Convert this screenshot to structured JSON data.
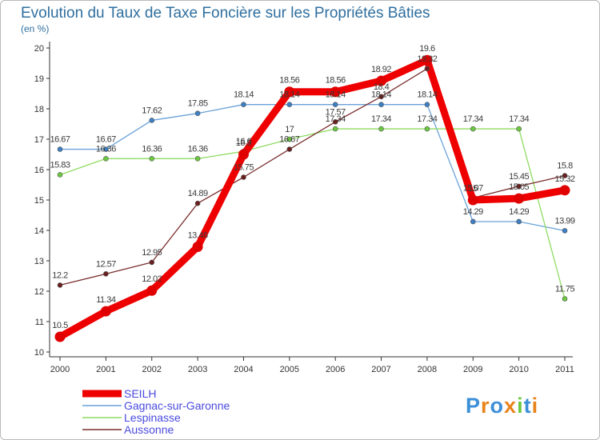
{
  "chart_data": {
    "type": "line",
    "title": "Evolution du Taux de Taxe Foncière sur les Propriétés Bâties",
    "subtitle": "(en %)",
    "xlabel": "",
    "ylabel": "",
    "ylim": [
      10,
      20
    ],
    "yticks": [
      "10",
      "11",
      "12",
      "13",
      "14",
      "15",
      "16",
      "17",
      "18",
      "19",
      "20"
    ],
    "categories": [
      "2000",
      "2001",
      "2002",
      "2003",
      "2004",
      "2005",
      "2006",
      "2007",
      "2008",
      "2009",
      "2010",
      "2011"
    ],
    "grid": false,
    "legend_position": "bottom-left",
    "series": [
      {
        "name": "Gagnac-sur-Garonne",
        "color": "#6aa1d8",
        "marker": "#3d7fc4",
        "values": [
          16.67,
          16.67,
          17.62,
          17.85,
          18.14,
          18.14,
          18.14,
          18.14,
          18.14,
          14.29,
          14.29,
          13.99
        ],
        "labels": [
          "16.67",
          "16.67",
          "17.62",
          "17.85",
          "18.14",
          "18.14",
          "18.14",
          "18.14",
          "18.14",
          "14.29",
          "14.29",
          "13.99"
        ]
      },
      {
        "name": "Lespinasse",
        "color": "#8fdc62",
        "marker": "#6cc840",
        "values": [
          15.83,
          16.36,
          16.36,
          16.36,
          16.6,
          17,
          17.34,
          17.34,
          17.34,
          17.34,
          17.34,
          11.75
        ],
        "labels": [
          "15.83",
          "16.36",
          "16.36",
          "16.36",
          "16.6",
          "17",
          "17.34",
          "17.34",
          "17.34",
          "17.34",
          "17.34",
          "11.75"
        ]
      },
      {
        "name": "Aussonne",
        "color": "#7a2e2e",
        "marker": "#6a1e1e",
        "values": [
          12.2,
          12.57,
          12.95,
          14.89,
          15.75,
          16.67,
          17.57,
          18.4,
          19.32,
          15.07,
          15.45,
          15.8
        ],
        "labels": [
          "12.2",
          "12.57",
          "12.95",
          "14.89",
          "15.75",
          "16.67",
          "17.57",
          "18.4",
          "19.32",
          "15.07",
          "15.45",
          "15.8"
        ]
      },
      {
        "name": "SEILH",
        "color": "#ee0000",
        "marker": "#e00000",
        "values": [
          10.5,
          11.34,
          12.02,
          13.46,
          16.5,
          18.56,
          18.56,
          18.92,
          19.6,
          15,
          15.05,
          15.32
        ],
        "labels": [
          "10.5",
          "11.34",
          "12.02",
          "13.46",
          "16.5",
          "18.56",
          "18.56",
          "18.92",
          "19.6",
          "15",
          "15.05",
          "15.32"
        ]
      }
    ],
    "legend_order": [
      "SEILH",
      "Gagnac-sur-Garonne",
      "Lespinasse",
      "Aussonne"
    ]
  },
  "logo": {
    "text": "Proxiti",
    "letter_colors": [
      "#3d8fd8",
      "#e8831a",
      "#3d8fd8",
      "#e8831a",
      "#6cc840",
      "#3d8fd8",
      "#e8831a"
    ]
  },
  "colors": {
    "axis": "#333333",
    "title": "#2f6f9f",
    "legend_text": "#4a4ae0"
  }
}
